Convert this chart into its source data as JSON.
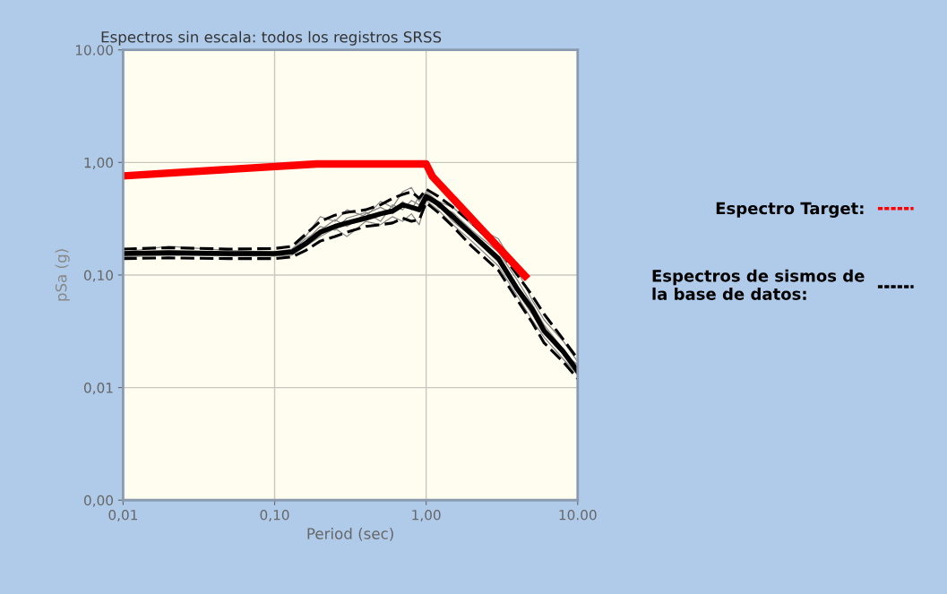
{
  "chart_data": {
    "type": "line",
    "title": "Espectros sin escala: todos los registros SRSS",
    "xlabel": "Period (sec)",
    "ylabel": "pSa (g)",
    "log": "xy",
    "grid": true,
    "legend": "right",
    "x": [
      0.01,
      0.02,
      0.05,
      0.1,
      0.13,
      0.16,
      0.2,
      0.25,
      0.3,
      0.4,
      0.5,
      0.6,
      0.7,
      0.8,
      0.9,
      1.0,
      1.2,
      1.5,
      2,
      3,
      4,
      5,
      6,
      8,
      10
    ],
    "xlim": [
      0.01,
      10
    ],
    "ylim": [
      0.001,
      10
    ],
    "xticks": [
      {
        "value": 0.01,
        "label": "0,01"
      },
      {
        "value": 0.1,
        "label": "0,10"
      },
      {
        "value": 1,
        "label": "1,00"
      },
      {
        "value": 10,
        "label": "10.00"
      }
    ],
    "yticks": [
      {
        "value": 0.001,
        "label": "0,00"
      },
      {
        "value": 0.01,
        "label": "0,01"
      },
      {
        "value": 0.1,
        "label": "0,10"
      },
      {
        "value": 1,
        "label": "1,00"
      },
      {
        "value": 10,
        "label": "10.00"
      }
    ],
    "series": [
      {
        "color": "#888888",
        "line_style": "solid",
        "values": [
          0.16,
          0.18,
          0.165,
          0.16,
          0.17,
          0.22,
          0.33,
          0.3,
          0.38,
          0.33,
          0.45,
          0.4,
          0.55,
          0.6,
          0.45,
          0.55,
          0.45,
          0.4,
          0.28,
          0.21,
          0.11,
          0.06,
          0.04,
          0.026,
          0.017
        ]
      },
      {
        "color": "#888888",
        "line_style": "solid",
        "values": [
          0.145,
          0.15,
          0.148,
          0.147,
          0.15,
          0.18,
          0.22,
          0.26,
          0.22,
          0.3,
          0.28,
          0.33,
          0.3,
          0.35,
          0.28,
          0.46,
          0.38,
          0.28,
          0.2,
          0.12,
          0.065,
          0.04,
          0.028,
          0.018,
          0.013
        ]
      },
      {
        "color": "#888888",
        "line_style": "solid",
        "values": [
          0.15,
          0.152,
          0.16,
          0.15,
          0.158,
          0.2,
          0.27,
          0.25,
          0.32,
          0.36,
          0.3,
          0.42,
          0.38,
          0.46,
          0.42,
          0.52,
          0.4,
          0.36,
          0.25,
          0.16,
          0.09,
          0.055,
          0.036,
          0.022,
          0.015
        ]
      },
      {
        "color": "#888888",
        "line_style": "solid",
        "values": [
          0.158,
          0.16,
          0.155,
          0.158,
          0.165,
          0.21,
          0.25,
          0.31,
          0.27,
          0.35,
          0.4,
          0.35,
          0.45,
          0.38,
          0.5,
          0.48,
          0.42,
          0.3,
          0.22,
          0.13,
          0.07,
          0.045,
          0.03,
          0.02,
          0.016
        ]
      },
      {
        "color": "#000000",
        "line_style": "dashed",
        "values": [
          0.17,
          0.175,
          0.17,
          0.172,
          0.18,
          0.23,
          0.3,
          0.34,
          0.36,
          0.38,
          0.42,
          0.48,
          0.52,
          0.55,
          0.48,
          0.58,
          0.5,
          0.4,
          0.29,
          0.17,
          0.1,
          0.066,
          0.045,
          0.027,
          0.018
        ]
      },
      {
        "color": "#000000",
        "line_style": "dashed",
        "values": [
          0.14,
          0.142,
          0.14,
          0.14,
          0.145,
          0.165,
          0.2,
          0.22,
          0.24,
          0.27,
          0.28,
          0.29,
          0.32,
          0.3,
          0.31,
          0.44,
          0.36,
          0.27,
          0.18,
          0.11,
          0.06,
          0.038,
          0.025,
          0.017,
          0.012
        ]
      },
      {
        "name": "Espectros de sismos de\nla base de datos:",
        "color": "#000000",
        "line_style": "solid",
        "values": [
          0.155,
          0.158,
          0.155,
          0.155,
          0.16,
          0.19,
          0.24,
          0.27,
          0.29,
          0.32,
          0.35,
          0.37,
          0.42,
          0.4,
          0.38,
          0.5,
          0.43,
          0.33,
          0.23,
          0.14,
          0.075,
          0.05,
          0.032,
          0.021,
          0.014
        ]
      },
      {
        "name": "Espectro Target:",
        "color": "#ff0000",
        "line_style": "solid",
        "x": [
          0.01,
          0.19,
          1.0,
          1.1,
          4.5
        ],
        "values": [
          0.76,
          0.97,
          0.97,
          0.75,
          0.098
        ]
      }
    ]
  }
}
